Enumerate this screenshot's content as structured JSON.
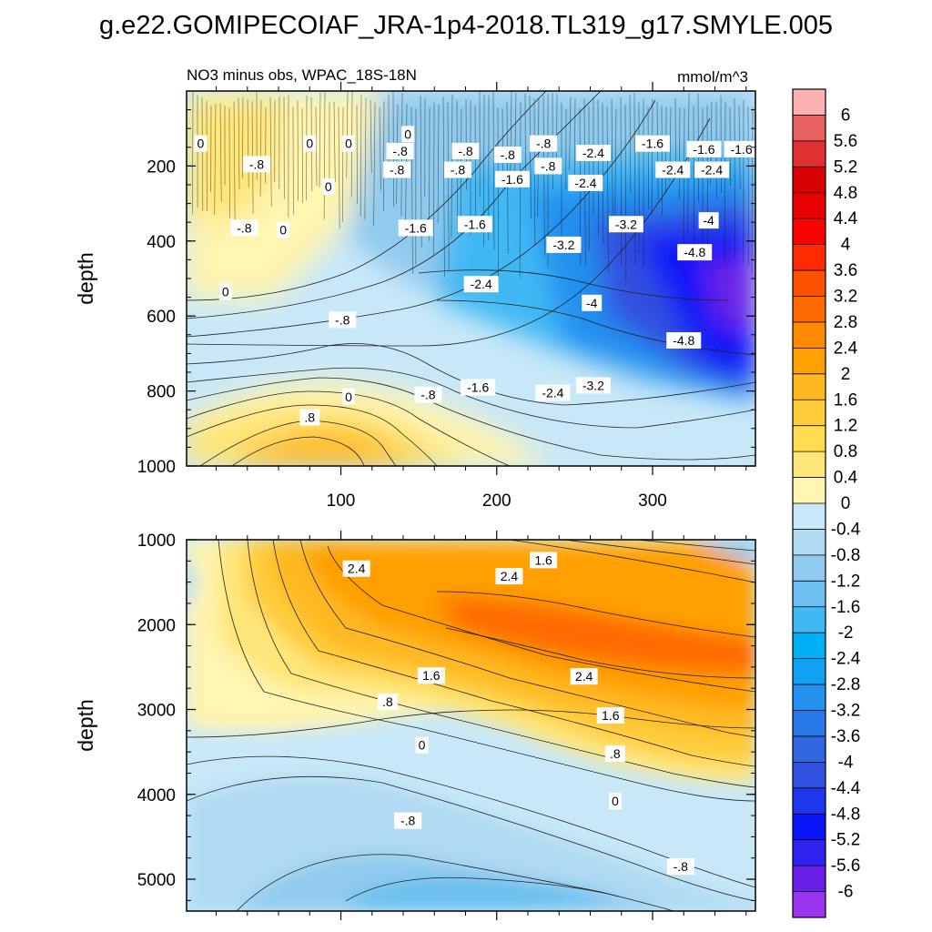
{
  "figure": {
    "title": "g.e22.GOMIPECOIAF_JRA-1p4-2018.TL319_g17.SMYLE.005",
    "subtitle_left": "NO3 minus obs, WPAC_18S-18N",
    "subtitle_right": "mmol/m^3"
  },
  "chart_data": [
    {
      "type": "heatmap",
      "name": "upper-panel",
      "ylabel": "depth",
      "xlabel": "",
      "x_ticks": [
        "100",
        "200",
        "300"
      ],
      "x_tick_values": [
        100,
        200,
        300
      ],
      "xlim": [
        1,
        366
      ],
      "y_ticks": [
        "200",
        "400",
        "600",
        "800",
        "1000"
      ],
      "y_tick_values": [
        200,
        400,
        600,
        800,
        1000
      ],
      "ylim": [
        0,
        1000
      ],
      "y_reversed": true,
      "contour_labels": [
        {
          "text": "0",
          "x": 10,
          "y": 140
        },
        {
          "text": "0",
          "x": 80,
          "y": 140
        },
        {
          "text": "0",
          "x": 105,
          "y": 140
        },
        {
          "text": "0",
          "x": 143,
          "y": 115
        },
        {
          "text": "-.8",
          "x": 46,
          "y": 195
        },
        {
          "text": "-.8",
          "x": 138,
          "y": 160
        },
        {
          "text": "-.8",
          "x": 136,
          "y": 210
        },
        {
          "text": "-.8",
          "x": 180,
          "y": 160
        },
        {
          "text": "-.8",
          "x": 175,
          "y": 210
        },
        {
          "text": "-.8",
          "x": 207,
          "y": 170
        },
        {
          "text": "-.8",
          "x": 230,
          "y": 140
        },
        {
          "text": "-.8",
          "x": 233,
          "y": 200
        },
        {
          "text": "-2.4",
          "x": 262,
          "y": 165
        },
        {
          "text": "-1.6",
          "x": 300,
          "y": 140
        },
        {
          "text": "-1.6",
          "x": 333,
          "y": 155
        },
        {
          "text": "-1.6",
          "x": 357,
          "y": 155
        },
        {
          "text": "0",
          "x": 92,
          "y": 255
        },
        {
          "text": "-1.6",
          "x": 210,
          "y": 235
        },
        {
          "text": "-2.4",
          "x": 257,
          "y": 245
        },
        {
          "text": "-2.4",
          "x": 313,
          "y": 210
        },
        {
          "text": "-2.4",
          "x": 338,
          "y": 210
        },
        {
          "text": "-.8",
          "x": 38,
          "y": 365
        },
        {
          "text": "0",
          "x": 63,
          "y": 370
        },
        {
          "text": "-1.6",
          "x": 148,
          "y": 365
        },
        {
          "text": "-1.6",
          "x": 186,
          "y": 355
        },
        {
          "text": "-3.2",
          "x": 283,
          "y": 355
        },
        {
          "text": "-4",
          "x": 336,
          "y": 345
        },
        {
          "text": "-3.2",
          "x": 243,
          "y": 410
        },
        {
          "text": "-4.8",
          "x": 327,
          "y": 430
        },
        {
          "text": "0",
          "x": 26,
          "y": 535
        },
        {
          "text": "-2.4",
          "x": 190,
          "y": 515
        },
        {
          "text": "-4",
          "x": 261,
          "y": 565
        },
        {
          "text": "-.8",
          "x": 101,
          "y": 610
        },
        {
          "text": "-4.8",
          "x": 320,
          "y": 665
        },
        {
          "text": "-1.6",
          "x": 188,
          "y": 790
        },
        {
          "text": "-2.4",
          "x": 236,
          "y": 805
        },
        {
          "text": "-3.2",
          "x": 262,
          "y": 785
        },
        {
          "text": "0",
          "x": 105,
          "y": 815
        },
        {
          "text": "-.8",
          "x": 156,
          "y": 810
        },
        {
          "text": ".8",
          "x": 80,
          "y": 870
        }
      ]
    },
    {
      "type": "heatmap",
      "name": "lower-panel",
      "ylabel": "depth",
      "xlabel": "",
      "x_tick_values": [
        100,
        200,
        300
      ],
      "xlim": [
        1,
        366
      ],
      "y_ticks": [
        "1000",
        "2000",
        "3000",
        "4000",
        "5000"
      ],
      "y_tick_values": [
        1000,
        2000,
        3000,
        4000,
        5000
      ],
      "ylim": [
        1000,
        5375
      ],
      "y_reversed": true,
      "contour_labels": [
        {
          "text": "2.4",
          "x": 110,
          "y": 1340
        },
        {
          "text": "1.6",
          "x": 230,
          "y": 1240
        },
        {
          "text": "2.4",
          "x": 208,
          "y": 1430
        },
        {
          "text": "1.6",
          "x": 158,
          "y": 2600
        },
        {
          "text": "2.4",
          "x": 256,
          "y": 2610
        },
        {
          "text": ".8",
          "x": 130,
          "y": 2910
        },
        {
          "text": "1.6",
          "x": 273,
          "y": 3070
        },
        {
          "text": "0",
          "x": 152,
          "y": 3420
        },
        {
          "text": ".8",
          "x": 276,
          "y": 3520
        },
        {
          "text": "0",
          "x": 276,
          "y": 4080
        },
        {
          "text": "-.8",
          "x": 143,
          "y": 4310
        },
        {
          "text": "-.8",
          "x": 318,
          "y": 4850
        }
      ]
    }
  ],
  "colorbar": {
    "levels": [
      "6",
      "5.6",
      "5.2",
      "4.8",
      "4.4",
      "4",
      "3.6",
      "3.2",
      "2.8",
      "2.4",
      "2",
      "1.6",
      "1.2",
      "0.8",
      "0.4",
      "0",
      "-0.4",
      "-0.8",
      "-1.2",
      "-1.6",
      "-2",
      "-2.4",
      "-2.8",
      "-3.2",
      "-3.6",
      "-4",
      "-4.4",
      "-4.8",
      "-5.2",
      "-5.6",
      "-6"
    ],
    "colors": [
      "#ffb0b0",
      "#e86060",
      "#e03030",
      "#d80000",
      "#e80000",
      "#ff0000",
      "#ff2a00",
      "#ff5200",
      "#ff6a00",
      "#ff8a00",
      "#ffa000",
      "#ffb820",
      "#ffcc3a",
      "#ffdc50",
      "#ffe67a",
      "#fff4b0",
      "#c8e8f8",
      "#b0daf2",
      "#90caee",
      "#6cc0f0",
      "#40b8f4",
      "#00b0f4",
      "#10a0f4",
      "#2490f0",
      "#2878e8",
      "#3066e0",
      "#3050e0",
      "#1e36ec",
      "#0a14f8",
      "#3022f0",
      "#6a20e8",
      "#9a34ee"
    ]
  }
}
